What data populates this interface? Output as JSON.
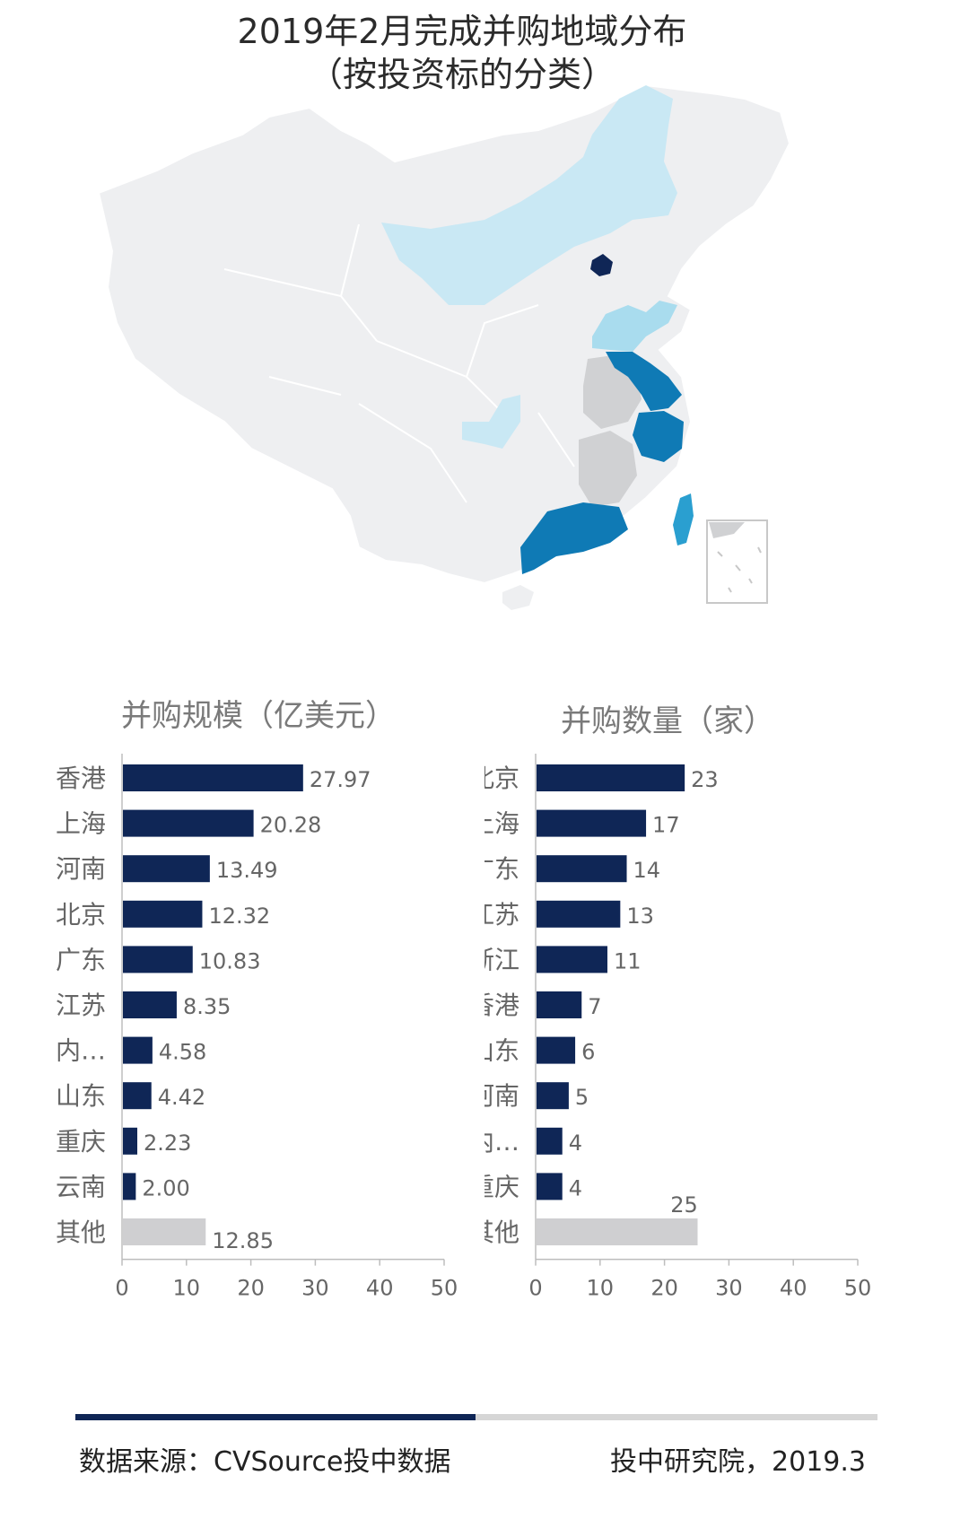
{
  "title": {
    "line1": "2019年2月完成并购地域分布",
    "line2": "（按投资标的分类）"
  },
  "colors": {
    "bar_main": "#0f2656",
    "bar_other": "#cfcfd1",
    "axis": "#bdbdbd",
    "label": "#666666",
    "map_base": "#eeeff1",
    "map_level1": "#c9e8f4",
    "map_level2": "#a9dcee",
    "map_level3": "#0f7ab5",
    "map_level4": "#2a9fd0",
    "map_darkest": "#0f2656",
    "map_grey": "#d0d1d3"
  },
  "chart_data": [
    {
      "type": "bar",
      "orientation": "horizontal",
      "title": "并购规模（亿美元）",
      "categories": [
        "香港",
        "上海",
        "河南",
        "北京",
        "广东",
        "江苏",
        "内…",
        "山东",
        "重庆",
        "云南",
        "其他"
      ],
      "values": [
        27.97,
        20.28,
        13.49,
        12.32,
        10.83,
        8.35,
        4.58,
        4.42,
        2.23,
        2.0,
        12.85
      ],
      "value_labels": [
        "27.97",
        "20.28",
        "13.49",
        "12.32",
        "10.83",
        "8.35",
        "4.58",
        "4.42",
        "2.23",
        "2.00",
        "12.85"
      ],
      "xlim": [
        0,
        50
      ],
      "xticks": [
        0,
        10,
        20,
        30,
        40,
        50
      ],
      "grid": false
    },
    {
      "type": "bar",
      "orientation": "horizontal",
      "title": "并购数量（家）",
      "categories": [
        "北京",
        "上海",
        "广东",
        "江苏",
        "浙江",
        "香港",
        "山东",
        "河南",
        "内…",
        "重庆",
        "其他"
      ],
      "values": [
        23,
        17,
        14,
        13,
        11,
        7,
        6,
        5,
        4,
        4,
        25
      ],
      "value_labels": [
        "23",
        "17",
        "14",
        "13",
        "11",
        "7",
        "6",
        "5",
        "4",
        "4",
        "25"
      ],
      "xlim": [
        0,
        50
      ],
      "xticks": [
        0,
        10,
        20,
        30,
        40,
        50
      ],
      "grid": false
    }
  ],
  "footer": {
    "source": "数据来源：CVSource投中数据",
    "credit": "投中研究院，2019.3"
  }
}
